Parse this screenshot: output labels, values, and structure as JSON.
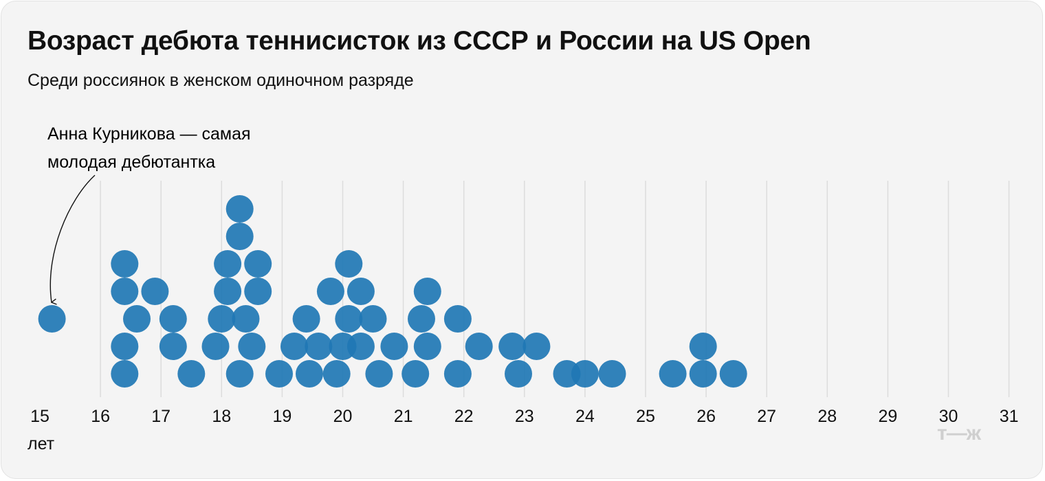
{
  "title": "Возраст дебюта теннисисток из СССР и России на US Open",
  "subtitle": "Среди россиянок в женском одиночном разряде",
  "annotation": {
    "line1": "Анна Курникова — самая",
    "line2": "молодая дебютантка"
  },
  "logo": "т—ж",
  "colors": {
    "dot": "#1f77b4",
    "grid": "#dcdcdc",
    "background": "#f4f4f4"
  },
  "chart_data": {
    "type": "scatter",
    "subtype": "beeswarm",
    "title": "Возраст дебюта теннисисток из СССР и России на US Open",
    "subtitle": "Среди россиянок в женском одиночном разряде",
    "xlabel": "лет",
    "xlim": [
      15,
      31
    ],
    "x_ticks": [
      "15",
      "16",
      "17",
      "18",
      "19",
      "20",
      "21",
      "22",
      "23",
      "24",
      "25",
      "26",
      "27",
      "28",
      "29",
      "30",
      "31"
    ],
    "grid": true,
    "points": [
      {
        "x": 15.2,
        "level": 3
      },
      {
        "x": 16.4,
        "level": 1
      },
      {
        "x": 16.4,
        "level": 2
      },
      {
        "x": 16.4,
        "level": 4
      },
      {
        "x": 16.4,
        "level": 5
      },
      {
        "x": 16.6,
        "level": 3
      },
      {
        "x": 16.9,
        "level": 4
      },
      {
        "x": 17.2,
        "level": 2
      },
      {
        "x": 17.2,
        "level": 3
      },
      {
        "x": 17.5,
        "level": 1
      },
      {
        "x": 17.9,
        "level": 2
      },
      {
        "x": 18.0,
        "level": 3
      },
      {
        "x": 18.1,
        "level": 4
      },
      {
        "x": 18.1,
        "level": 5
      },
      {
        "x": 18.3,
        "level": 1
      },
      {
        "x": 18.3,
        "level": 6
      },
      {
        "x": 18.3,
        "level": 7
      },
      {
        "x": 18.4,
        "level": 3
      },
      {
        "x": 18.5,
        "level": 2
      },
      {
        "x": 18.6,
        "level": 4
      },
      {
        "x": 18.6,
        "level": 5
      },
      {
        "x": 18.95,
        "level": 1
      },
      {
        "x": 19.2,
        "level": 2
      },
      {
        "x": 19.4,
        "level": 3
      },
      {
        "x": 19.45,
        "level": 1
      },
      {
        "x": 19.6,
        "level": 2
      },
      {
        "x": 19.8,
        "level": 4
      },
      {
        "x": 19.9,
        "level": 1
      },
      {
        "x": 20.0,
        "level": 2
      },
      {
        "x": 20.1,
        "level": 3
      },
      {
        "x": 20.1,
        "level": 5
      },
      {
        "x": 20.3,
        "level": 2
      },
      {
        "x": 20.3,
        "level": 4
      },
      {
        "x": 20.5,
        "level": 3
      },
      {
        "x": 20.6,
        "level": 1
      },
      {
        "x": 20.85,
        "level": 2
      },
      {
        "x": 21.2,
        "level": 1
      },
      {
        "x": 21.3,
        "level": 3
      },
      {
        "x": 21.4,
        "level": 2
      },
      {
        "x": 21.4,
        "level": 4
      },
      {
        "x": 21.9,
        "level": 1
      },
      {
        "x": 21.9,
        "level": 3
      },
      {
        "x": 22.25,
        "level": 2
      },
      {
        "x": 22.8,
        "level": 2
      },
      {
        "x": 22.9,
        "level": 1
      },
      {
        "x": 23.2,
        "level": 2
      },
      {
        "x": 23.7,
        "level": 1
      },
      {
        "x": 24.0,
        "level": 1
      },
      {
        "x": 24.45,
        "level": 1
      },
      {
        "x": 25.45,
        "level": 1
      },
      {
        "x": 25.95,
        "level": 1
      },
      {
        "x": 25.95,
        "level": 2
      },
      {
        "x": 26.45,
        "level": 1
      }
    ],
    "annotation": "Анна Курникова — самая молодая дебютантка"
  }
}
